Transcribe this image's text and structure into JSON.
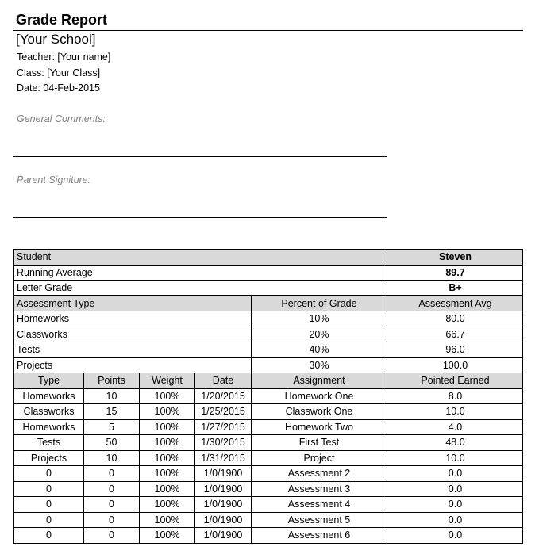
{
  "header": {
    "title": "Grade Report",
    "school": "[Your School]",
    "teacher": "Teacher: [Your name]",
    "class": "Class: [Your Class]",
    "date": "Date: 04-Feb-2015",
    "general_comments_label": "General Comments:",
    "parent_signature_label": "Parent Signiture:"
  },
  "summary": {
    "student_label": "Student",
    "student_value": "Steven",
    "running_average_label": "Running Average",
    "running_average_value": "89.7",
    "letter_grade_label": "Letter Grade",
    "letter_grade_value": "B+"
  },
  "assessment_types": {
    "headers": [
      "Assessment Type",
      "Percent of Grade",
      "Assessment Avg"
    ],
    "rows": [
      [
        "Homeworks",
        "10%",
        "80.0"
      ],
      [
        "Classworks",
        "20%",
        "66.7"
      ],
      [
        "Tests",
        "40%",
        "96.0"
      ],
      [
        "Projects",
        "30%",
        "100.0"
      ]
    ]
  },
  "assignments": {
    "headers": [
      "Type",
      "Points",
      "Weight",
      "Date",
      "Assignment",
      "Pointed Earned"
    ],
    "rows": [
      [
        "Homeworks",
        "10",
        "100%",
        "1/20/2015",
        "Homework One",
        "8.0"
      ],
      [
        "Classworks",
        "15",
        "100%",
        "1/25/2015",
        "Classwork  One",
        "10.0"
      ],
      [
        "Homeworks",
        "5",
        "100%",
        "1/27/2015",
        "Homework Two",
        "4.0"
      ],
      [
        "Tests",
        "50",
        "100%",
        "1/30/2015",
        "First Test",
        "48.0"
      ],
      [
        "Projects",
        "10",
        "100%",
        "1/31/2015",
        "Project",
        "10.0"
      ],
      [
        "0",
        "0",
        "100%",
        "1/0/1900",
        "Assessment 2",
        "0.0"
      ],
      [
        "0",
        "0",
        "100%",
        "1/0/1900",
        "Assessment 3",
        "0.0"
      ],
      [
        "0",
        "0",
        "100%",
        "1/0/1900",
        "Assessment 4",
        "0.0"
      ],
      [
        "0",
        "0",
        "100%",
        "1/0/1900",
        "Assessment 5",
        "0.0"
      ],
      [
        "0",
        "0",
        "100%",
        "1/0/1900",
        "Assessment 6",
        "0.0"
      ]
    ]
  },
  "colors": {
    "header_fill": "#d9d9d9",
    "label_gray": "#808080"
  }
}
